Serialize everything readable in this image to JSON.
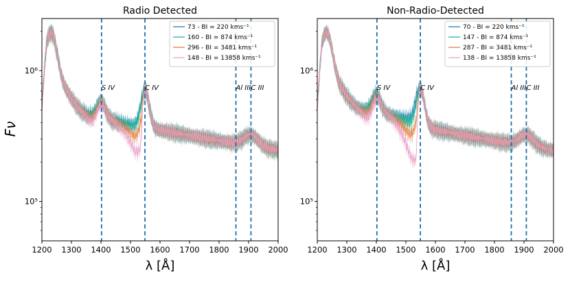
{
  "chart_data": [
    {
      "type": "line",
      "title": "Radio Detected",
      "xlabel": "λ [Å]",
      "ylabel": "Fν",
      "xlim": [
        1200,
        2000
      ],
      "ylim": [
        50000,
        2500000
      ],
      "yscale": "log",
      "x_ticks": [
        1200,
        1300,
        1400,
        1500,
        1600,
        1700,
        1800,
        1900,
        2000
      ],
      "y_ticks": [
        {
          "value": 100000,
          "label": "10⁵"
        },
        {
          "value": 1000000,
          "label": "10⁶"
        }
      ],
      "lines": [
        {
          "label": "S IV",
          "x": 1402
        },
        {
          "label": "C IV",
          "x": 1549
        },
        {
          "label": "Al III",
          "x": 1857
        },
        {
          "label": "C III",
          "x": 1908
        }
      ],
      "legend": "top-right",
      "series": [
        {
          "name": "73 - BI = 220 kms⁻¹",
          "color": "#1f77b4",
          "troughDepth": 0.0
        },
        {
          "name": "160 - BI = 874 kms⁻¹",
          "color": "#17b890",
          "troughDepth": 0.05
        },
        {
          "name": "296 - BI = 3481 kms⁻¹",
          "color": "#e07b39",
          "troughDepth": 0.32
        },
        {
          "name": "148 - BI = 13858 kms⁻¹",
          "color": "#e7a0c8",
          "troughDepth": 0.62
        }
      ]
    },
    {
      "type": "line",
      "title": "Non-Radio-Detected",
      "xlabel": "λ [Å]",
      "ylabel": "",
      "xlim": [
        1200,
        2000
      ],
      "ylim": [
        50000,
        2500000
      ],
      "yscale": "log",
      "x_ticks": [
        1200,
        1300,
        1400,
        1500,
        1600,
        1700,
        1800,
        1900,
        2000
      ],
      "y_ticks": [
        {
          "value": 100000,
          "label": "10⁵"
        },
        {
          "value": 1000000,
          "label": "10⁶"
        }
      ],
      "lines": [
        {
          "label": "S IV",
          "x": 1402
        },
        {
          "label": "C IV",
          "x": 1549
        },
        {
          "label": "Al III",
          "x": 1857
        },
        {
          "label": "C III",
          "x": 1908
        }
      ],
      "legend": "top-right",
      "series": [
        {
          "name": "70 - BI = 220 kms⁻¹",
          "color": "#1f77b4",
          "troughDepth": -0.1
        },
        {
          "name": "147 - BI = 874 kms⁻¹",
          "color": "#17b890",
          "troughDepth": 0.05
        },
        {
          "name": "287 - BI = 3481 kms⁻¹",
          "color": "#e07b39",
          "troughDepth": 0.35
        },
        {
          "name": "138 - BI = 13858 kms⁻¹",
          "color": "#e7a0c8",
          "troughDepth": 0.75
        }
      ]
    }
  ]
}
